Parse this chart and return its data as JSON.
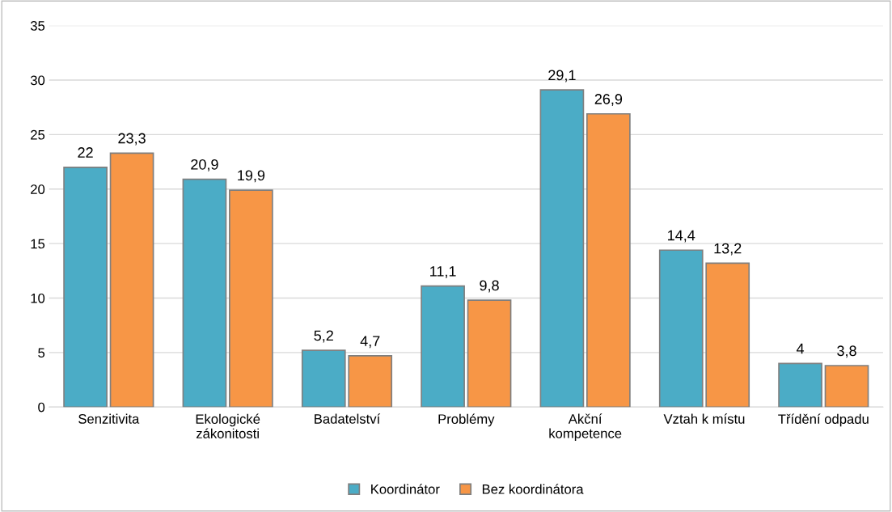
{
  "chart_data": {
    "type": "bar",
    "categories": [
      "Senzitivita",
      "Ekologické\nzákonitosti",
      "Badatelství",
      "Problémy",
      "Akční\nkompetence",
      "Vztah k místu",
      "Třídění odpadu"
    ],
    "series": [
      {
        "name": "Koordinátor",
        "color": "#4bacc6",
        "values": [
          22,
          20.9,
          5.2,
          11.1,
          29.1,
          14.4,
          4
        ],
        "value_labels": [
          "22",
          "20,9",
          "5,2",
          "11,1",
          "29,1",
          "14,4",
          "4"
        ]
      },
      {
        "name": "Bez koordinátora",
        "color": "#f79646",
        "values": [
          23.3,
          19.9,
          4.7,
          9.8,
          26.9,
          13.2,
          3.8
        ],
        "value_labels": [
          "23,3",
          "19,9",
          "4,7",
          "9,8",
          "26,9",
          "13,2",
          "3,8"
        ]
      }
    ],
    "ylim": [
      0,
      35
    ],
    "yticks": [
      0,
      5,
      10,
      15,
      20,
      25,
      30,
      35
    ],
    "grid": "y",
    "legend": "bottom"
  }
}
